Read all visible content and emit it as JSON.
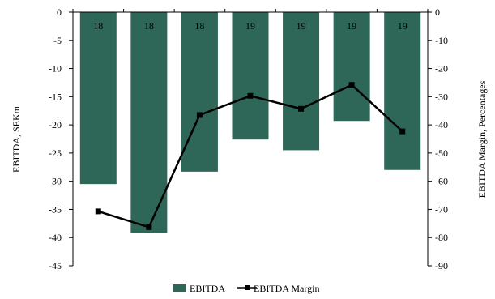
{
  "chart_data": {
    "type": "bar",
    "categories": [
      "18",
      "18",
      "18",
      "19",
      "19",
      "19",
      "19"
    ],
    "series": [
      {
        "name": "EBITDA",
        "type": "bar",
        "axis": "left",
        "values": [
          -30.5,
          -39.2,
          -28.3,
          -22.6,
          -24.5,
          -19.3,
          -28.0
        ],
        "color": "#2e6657"
      },
      {
        "name": "EBITDA Margin",
        "type": "line",
        "axis": "right",
        "values": [
          -70.7,
          -76.3,
          -36.5,
          -29.7,
          -34.3,
          -25.8,
          -42.3
        ],
        "color": "#000000"
      }
    ],
    "bar_labels": [
      "18",
      "18",
      "18",
      "19",
      "19",
      "19",
      "19"
    ],
    "ylabel": "EBITDA, SEKm",
    "ylabel_right": "EBITDA Margin, Percentages",
    "ylim": [
      -45,
      0
    ],
    "ylim_right": [
      -90,
      0
    ],
    "yticks": [
      "0",
      "-5",
      "-10",
      "-15",
      "-20",
      "-25",
      "-30",
      "-35",
      "-40",
      "-45"
    ],
    "yticks_right": [
      "0",
      "-10",
      "-20",
      "-30",
      "-40",
      "-50",
      "-60",
      "-70",
      "-80",
      "-90"
    ],
    "legend": [
      "EBITDA",
      "EBITDA Margin"
    ],
    "legend_position": "bottom",
    "grid": false
  }
}
